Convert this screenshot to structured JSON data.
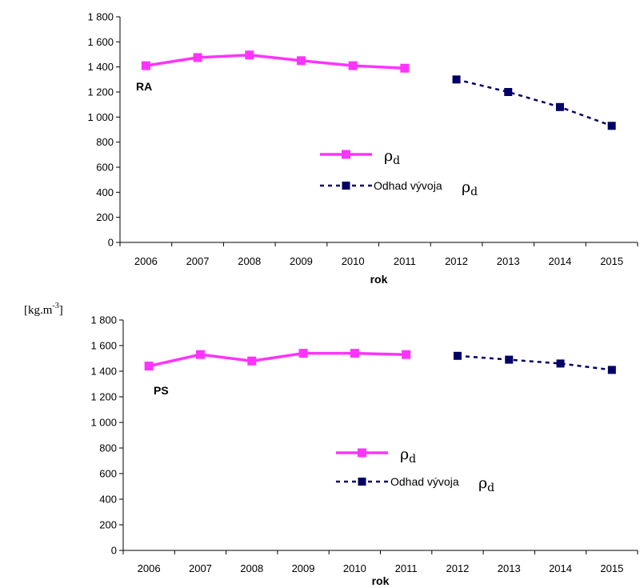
{
  "unit_label": {
    "base": "[kg.m",
    "sup": "-3",
    "close": "]"
  },
  "colors": {
    "measured": "#ff33ff",
    "estimate": "#000066"
  },
  "chart_data": [
    {
      "type": "line",
      "panel_label": "RA",
      "xlabel": "rok",
      "categories": [
        "2006",
        "2007",
        "2008",
        "2009",
        "2010",
        "2011",
        "2012",
        "2013",
        "2014",
        "2015"
      ],
      "ylim": [
        0,
        1800
      ],
      "yticks": [
        0,
        200,
        400,
        600,
        800,
        1000,
        1200,
        1400,
        1600,
        1800
      ],
      "ytick_labels": [
        "0",
        "200",
        "400",
        "600",
        "800",
        "1 000",
        "1 200",
        "1 400",
        "1 600",
        "1 800"
      ],
      "series": [
        {
          "name": "ρd",
          "label_main": "ρ",
          "label_sub": "d",
          "style": "solid",
          "color": "#ff33ff",
          "x": [
            "2006",
            "2007",
            "2008",
            "2009",
            "2010",
            "2011"
          ],
          "values": [
            1410,
            1475,
            1495,
            1450,
            1410,
            1390
          ]
        },
        {
          "name": "Odhad vývoja ρd",
          "label_text": "Odhad vývoja",
          "label_main": "ρ",
          "label_sub": "d",
          "style": "dashed",
          "color": "#000066",
          "x": [
            "2012",
            "2013",
            "2014",
            "2015"
          ],
          "values": [
            1300,
            1200,
            1080,
            930
          ]
        }
      ]
    },
    {
      "type": "line",
      "panel_label": "PS",
      "xlabel": "rok",
      "categories": [
        "2006",
        "2007",
        "2008",
        "2009",
        "2010",
        "2011",
        "2012",
        "2013",
        "2014",
        "2015"
      ],
      "ylim": [
        0,
        1800
      ],
      "yticks": [
        0,
        200,
        400,
        600,
        800,
        1000,
        1200,
        1400,
        1600,
        1800
      ],
      "ytick_labels": [
        "0",
        "200",
        "400",
        "600",
        "800",
        "1 000",
        "1 200",
        "1 400",
        "1 600",
        "1 800"
      ],
      "series": [
        {
          "name": "ρd",
          "label_main": "ρ",
          "label_sub": "d",
          "style": "solid",
          "color": "#ff33ff",
          "x": [
            "2006",
            "2007",
            "2008",
            "2009",
            "2010",
            "2011"
          ],
          "values": [
            1440,
            1530,
            1480,
            1540,
            1540,
            1530
          ]
        },
        {
          "name": "Odhad vývoja ρd",
          "label_text": "Odhad vývoja",
          "label_main": "ρ",
          "label_sub": "d",
          "style": "dashed",
          "color": "#000066",
          "x": [
            "2012",
            "2013",
            "2014",
            "2015"
          ],
          "values": [
            1520,
            1490,
            1460,
            1410
          ]
        }
      ]
    }
  ]
}
